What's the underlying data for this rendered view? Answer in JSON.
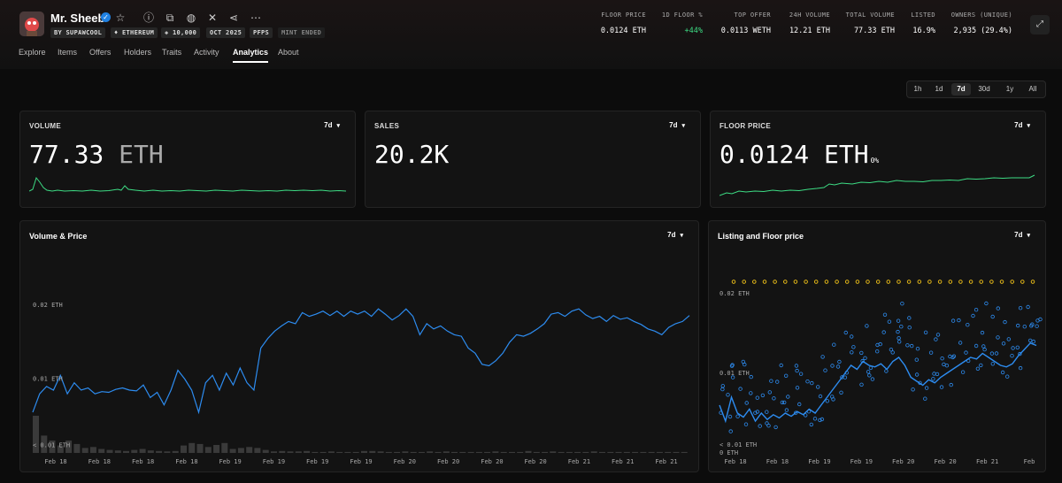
{
  "collection": {
    "name": "Mr. Sheeb",
    "tags": [
      "BY SUPAWCOOL",
      "♦ ETHEREUM",
      "◈ 10,000",
      "OCT 2025",
      "PFPS",
      "MINT ENDED"
    ]
  },
  "icons": {
    "verified": "verified-check-icon",
    "star": "star-icon",
    "info": "info-icon",
    "copy": "copy-icon",
    "globe": "globe-icon",
    "x": "x-icon",
    "share": "share-icon",
    "more": "more-icon",
    "expand": "expand-icon"
  },
  "stats": [
    {
      "label": "FLOOR PRICE",
      "value": "0.0124 ETH"
    },
    {
      "label": "1D FLOOR %",
      "value": "+44%"
    },
    {
      "label": "TOP OFFER",
      "value": "0.0113 WETH"
    },
    {
      "label": "24H VOLUME",
      "value": "12.21 ETH"
    },
    {
      "label": "TOTAL VOLUME",
      "value": "77.33 ETH"
    },
    {
      "label": "LISTED",
      "value": "16.9%"
    },
    {
      "label": "OWNERS (UNIQUE)",
      "value": "2,935 (29.4%)"
    }
  ],
  "tabs": [
    "Explore",
    "Items",
    "Offers",
    "Holders",
    "Traits",
    "Activity",
    "Analytics",
    "About"
  ],
  "active_tab": "Analytics",
  "time_ranges": [
    "1h",
    "1d",
    "7d",
    "30d",
    "1y",
    "All"
  ],
  "active_range": "7d",
  "cards": {
    "volume": {
      "title": "VOLUME",
      "period": "7d",
      "value": "77.33",
      "unit": "ETH"
    },
    "sales": {
      "title": "SALES",
      "period": "7d",
      "value": "20.2K"
    },
    "floor": {
      "title": "FLOOR PRICE",
      "period": "7d",
      "value": "0.0124",
      "unit": "ETH",
      "change": "0%"
    }
  },
  "volume_price": {
    "title": "Volume & Price",
    "period": "7d",
    "y_ticks": [
      "0.02 ETH",
      "0.01 ETH",
      "< 0.01 ETH"
    ],
    "x_ticks": [
      "Feb 18",
      "Feb 18",
      "Feb 18",
      "Feb 18",
      "Feb 19",
      "Feb 19",
      "Feb 19",
      "Feb 19",
      "Feb 20",
      "Feb 20",
      "Feb 20",
      "Feb 20",
      "Feb 21",
      "Feb 21",
      "Feb 21"
    ]
  },
  "listing_floor": {
    "title": "Listing and Floor price",
    "period": "7d",
    "y_ticks": [
      "0.02 ETH",
      "0.01 ETH",
      "< 0.01 ETH",
      "0 ETH"
    ],
    "x_ticks": [
      "Feb 18",
      "Feb 18",
      "Feb 19",
      "Feb 19",
      "Feb 20",
      "Feb 20",
      "Feb 21",
      "Feb"
    ]
  },
  "colors": {
    "accent_blue": "#2d8cf0",
    "spark_green": "#3ddc84",
    "listing_yellow": "#f5c518"
  },
  "chart_data": [
    {
      "type": "line",
      "title": "Volume & Price",
      "series": [
        {
          "values": [
            0.0055,
            0.008,
            0.009,
            0.0085,
            0.0105,
            0.008,
            0.0095,
            0.0085,
            0.0088,
            0.008,
            0.0083,
            0.0082,
            0.0086,
            0.0088,
            0.0085,
            0.0084,
            0.0092,
            0.0075,
            0.0082,
            0.0065,
            0.0085,
            0.0112,
            0.01,
            0.0085,
            0.0055,
            0.0095,
            0.0105,
            0.0085,
            0.0108,
            0.0092,
            0.0115,
            0.0095,
            0.0085,
            0.0142,
            0.0155,
            0.0165,
            0.0172,
            0.0178,
            0.0175,
            0.019,
            0.0185,
            0.0188,
            0.0192,
            0.0186,
            0.0192,
            0.0185,
            0.0192,
            0.0188,
            0.0192,
            0.0185,
            0.0195,
            0.0188,
            0.018,
            0.0186,
            0.0195,
            0.0185,
            0.016,
            0.0175,
            0.0168,
            0.0172,
            0.0165,
            0.016,
            0.0158,
            0.0142,
            0.0135,
            0.012,
            0.0118,
            0.0125,
            0.0135,
            0.015,
            0.016,
            0.0158,
            0.0162,
            0.0168,
            0.0175,
            0.0188,
            0.019,
            0.0185,
            0.0192,
            0.0195,
            0.0187,
            0.0182,
            0.0185,
            0.0178,
            0.0186,
            0.0181,
            0.0183,
            0.0178,
            0.0174,
            0.0168,
            0.0165,
            0.016,
            0.017,
            0.0175,
            0.0178,
            0.0186
          ]
        },
        {
          "values": [
            0.0075,
            0.0035,
            0.0025,
            0.0015,
            0.0025,
            0.0018,
            0.001,
            0.0012,
            0.0008,
            0.0006,
            0.0005,
            0.0004,
            0.0006,
            0.0008,
            0.0005,
            0.0004,
            0.0003,
            0.0004,
            0.0015,
            0.002,
            0.0018,
            0.0012,
            0.0016,
            0.002,
            0.0008,
            0.001,
            0.0012,
            0.001,
            0.0006,
            0.0003,
            0.0004,
            0.0003,
            0.0003,
            0.0004,
            0.0002,
            0.0002,
            0.0003,
            0.0002,
            0.0002,
            0.0002,
            0.0004,
            0.0004,
            0.0003,
            0.0002,
            0.0002,
            0.0003,
            0.0002,
            0.0002,
            0.0003,
            0.0002,
            0.0003,
            0.0002,
            0.0002,
            0.0002,
            0.0002,
            0.0002,
            0.0003,
            0.0002,
            0.0002,
            0.0002,
            0.0004,
            0.0002,
            0.0002,
            0.0003,
            0.0002,
            0.0002,
            0.0002,
            0.0002,
            0.0003,
            0.0002,
            0.0002,
            0.0002,
            0.0002,
            0.0002,
            0.0002,
            0.0002,
            0.0002,
            0.0002,
            0.0002,
            0.0002
          ]
        }
      ]
    },
    {
      "type": "scatter",
      "title": "Listing and Floor price",
      "series": [
        {
          "values": [
            0.006,
            0.004,
            0.007,
            0.005,
            0.0045,
            0.0055,
            0.004,
            0.005,
            0.0042,
            0.0048,
            0.0044,
            0.005,
            0.0046,
            0.0052,
            0.0048,
            0.0055,
            0.005,
            0.006,
            0.007,
            0.008,
            0.009,
            0.01,
            0.011,
            0.0105,
            0.0115,
            0.011,
            0.0108,
            0.0112,
            0.0105,
            0.0115,
            0.012,
            0.011,
            0.0095,
            0.009,
            0.0085,
            0.0092,
            0.0088,
            0.0095,
            0.01,
            0.0105,
            0.011,
            0.0115,
            0.012,
            0.0118,
            0.0125,
            0.012,
            0.0115,
            0.011,
            0.0108,
            0.0112,
            0.0122,
            0.013,
            0.0138,
            0.0135
          ]
        },
        {
          "values": [
            0.0215,
            0.0215,
            0.0215,
            0.0215,
            0.0215,
            0.0215,
            0.0215,
            0.0215,
            0.0215,
            0.0215,
            0.0215,
            0.0215,
            0.0215,
            0.0215,
            0.0215,
            0.0215,
            0.0215,
            0.0215,
            0.0215,
            0.0215,
            0.0215,
            0.0215,
            0.0215,
            0.0215,
            0.0215,
            0.0215,
            0.0215,
            0.0215,
            0.0215,
            0.0215
          ]
        }
      ]
    }
  ]
}
